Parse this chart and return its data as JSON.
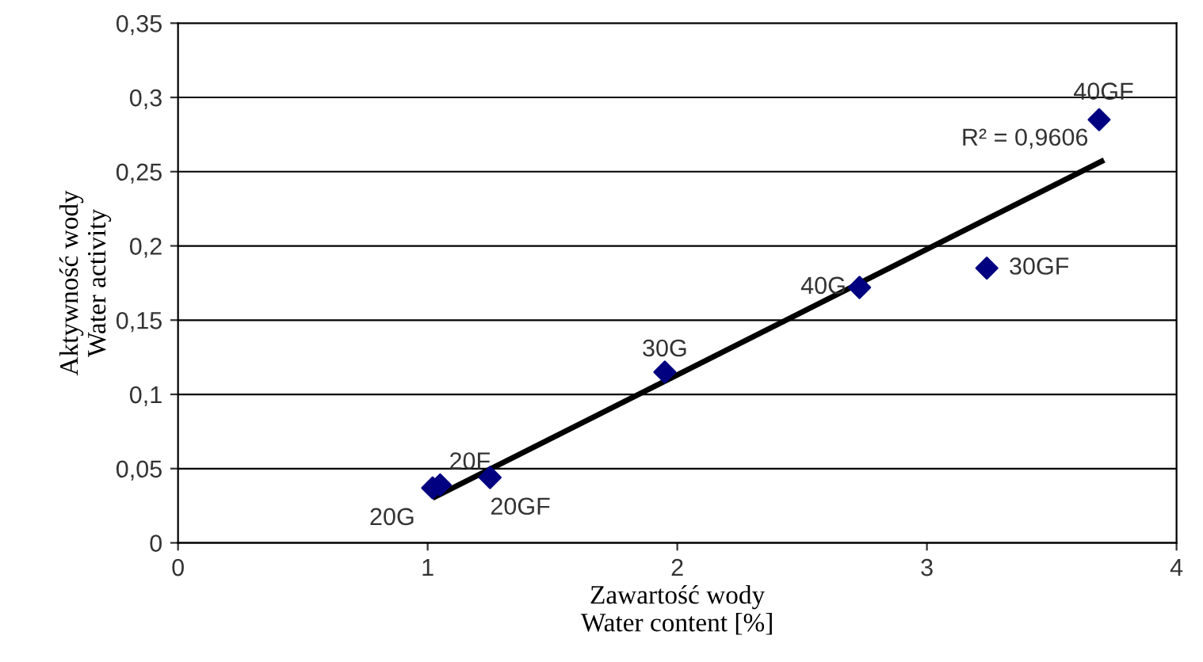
{
  "chart_data": {
    "type": "scatter",
    "xlabel": "Zawartość wody\nWater content [%]",
    "ylabel": "Aktywność wody\nWater activity",
    "xlim": [
      0,
      4
    ],
    "ylim": [
      0,
      0.35
    ],
    "xticks": [
      0,
      1,
      2,
      3,
      4
    ],
    "yticks": [
      0,
      {
        "value": 0.05,
        "label": "0,05"
      },
      {
        "value": 0.1,
        "label": "0,1"
      },
      {
        "value": 0.15,
        "label": "0,15"
      },
      {
        "value": 0.2,
        "label": "0,2"
      },
      {
        "value": 0.25,
        "label": "0,25"
      },
      {
        "value": 0.3,
        "label": "0,3"
      },
      {
        "value": 0.35,
        "label": "0,35"
      }
    ],
    "grid": "y",
    "marker": "diamond",
    "series": [
      {
        "color": "#000080",
        "x": [
          1.02,
          1.05,
          1.25,
          1.95,
          2.73,
          3.24,
          3.69
        ],
        "values": [
          0.037,
          0.039,
          0.044,
          0.115,
          0.172,
          0.185,
          0.285
        ]
      },
      {
        "type": "line",
        "color": "#000000",
        "marker": "none",
        "x": [
          1.03,
          3.7
        ],
        "values": [
          0.031,
          0.257
        ]
      }
    ],
    "annotations": [
      {
        "text": "20G",
        "x": 1.02,
        "y": 0.037
      },
      {
        "text": "20F",
        "x": 1.05,
        "y": 0.039
      },
      {
        "text": "20GF",
        "x": 1.25,
        "y": 0.044
      },
      {
        "text": "30G",
        "x": 1.95,
        "y": 0.115
      },
      {
        "text": "40G",
        "x": 2.73,
        "y": 0.172
      },
      {
        "text": "30GF",
        "x": 3.24,
        "y": 0.185
      },
      {
        "text": "40GF",
        "x": 3.69,
        "y": 0.285
      },
      {
        "text": "R² = 0,9606",
        "x": 3.7,
        "y": 0.257
      }
    ]
  }
}
